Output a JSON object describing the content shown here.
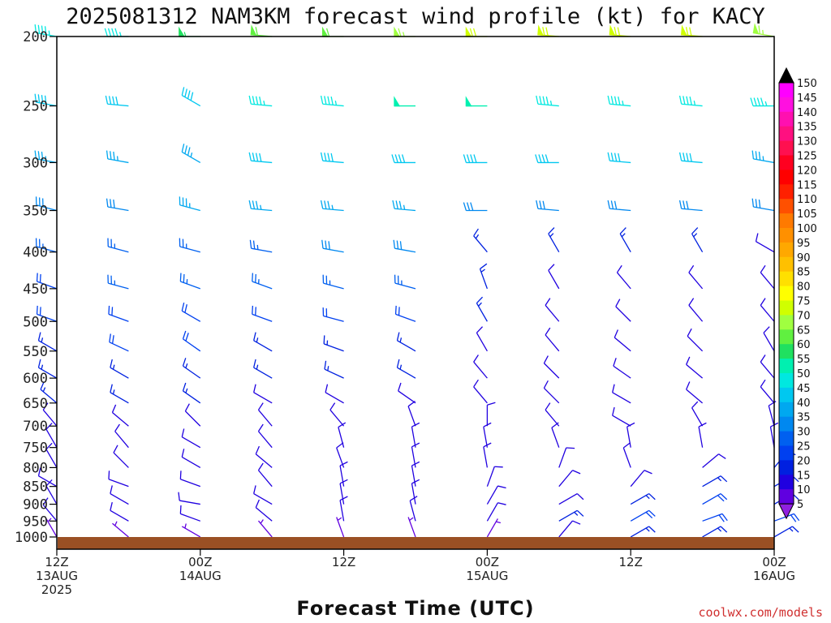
{
  "chart_data": {
    "type": "wind-barb-time-height",
    "title": "2025081312 NAM3KM forecast wind profile (kt) for KACY",
    "xlabel": "Forecast Time (UTC)",
    "credit": "coolwx.com/models",
    "y_axis": {
      "ticks": [
        200,
        250,
        300,
        350,
        400,
        450,
        500,
        550,
        600,
        650,
        700,
        750,
        800,
        850,
        900,
        950,
        1000
      ],
      "scale": "log-pressure",
      "range": [
        1040,
        200
      ]
    },
    "x_axis": {
      "range": [
        0,
        60
      ],
      "ticks": [
        {
          "hour": 0,
          "lines": [
            "12Z",
            "13AUG",
            "2025"
          ]
        },
        {
          "hour": 12,
          "lines": [
            "00Z",
            "14AUG"
          ]
        },
        {
          "hour": 24,
          "lines": [
            "12Z"
          ]
        },
        {
          "hour": 36,
          "lines": [
            "00Z",
            "15AUG"
          ]
        },
        {
          "hour": 48,
          "lines": [
            "12Z"
          ]
        },
        {
          "hour": 60,
          "lines": [
            "00Z",
            "16AUG"
          ]
        }
      ]
    },
    "colorbar": {
      "labels": [
        150,
        145,
        140,
        135,
        130,
        125,
        120,
        115,
        110,
        105,
        100,
        95,
        90,
        85,
        80,
        75,
        70,
        65,
        60,
        55,
        50,
        45,
        40,
        35,
        30,
        25,
        20,
        15,
        10,
        5
      ],
      "colors": [
        "#ff00ff",
        "#ff10e0",
        "#ff10b0",
        "#ff1080",
        "#ff1050",
        "#ff0020",
        "#ff0000",
        "#ff2000",
        "#ff5000",
        "#ff7a00",
        "#ff9000",
        "#ffa800",
        "#ffc000",
        "#ffe000",
        "#ffff00",
        "#d0ff00",
        "#a0ff40",
        "#60f040",
        "#20e060",
        "#00f0b0",
        "#00e8e0",
        "#00c8f0",
        "#00a8f0",
        "#0088f0",
        "#0060f0",
        "#0040f0",
        "#0020e0",
        "#2000e0",
        "#6000e0",
        "#9020e0"
      ]
    },
    "levels": [
      200,
      250,
      300,
      350,
      400,
      450,
      500,
      550,
      600,
      650,
      700,
      750,
      800,
      850,
      900,
      950,
      1000
    ],
    "times": [
      0,
      6,
      12,
      18,
      24,
      30,
      36,
      42,
      48,
      54,
      60
    ],
    "direction_deg": [
      [
        280,
        270,
        270,
        275,
        270,
        270,
        270,
        275,
        275,
        275,
        280
      ],
      [
        280,
        275,
        300,
        275,
        275,
        270,
        270,
        275,
        275,
        275,
        270
      ],
      [
        280,
        280,
        300,
        275,
        275,
        270,
        270,
        270,
        275,
        275,
        280
      ],
      [
        285,
        280,
        285,
        275,
        275,
        275,
        270,
        275,
        275,
        275,
        280
      ],
      [
        285,
        285,
        285,
        280,
        280,
        280,
        320,
        330,
        330,
        330,
        300
      ],
      [
        290,
        285,
        290,
        290,
        285,
        285,
        340,
        330,
        320,
        320,
        320
      ],
      [
        290,
        290,
        300,
        290,
        285,
        290,
        330,
        320,
        315,
        320,
        320
      ],
      [
        300,
        295,
        305,
        300,
        290,
        300,
        330,
        320,
        310,
        315,
        330
      ],
      [
        300,
        300,
        305,
        300,
        295,
        300,
        320,
        315,
        305,
        310,
        320
      ],
      [
        310,
        300,
        305,
        300,
        300,
        305,
        320,
        315,
        300,
        310,
        320
      ],
      [
        320,
        310,
        315,
        320,
        320,
        340,
        360,
        320,
        300,
        330,
        345
      ],
      [
        330,
        320,
        300,
        320,
        345,
        350,
        350,
        340,
        350,
        350,
        350
      ],
      [
        330,
        315,
        300,
        310,
        340,
        350,
        350,
        20,
        340,
        50,
        40
      ],
      [
        300,
        290,
        290,
        320,
        350,
        350,
        20,
        40,
        40,
        60,
        60
      ],
      [
        330,
        300,
        280,
        300,
        350,
        350,
        30,
        60,
        60,
        60,
        60
      ],
      [
        320,
        300,
        290,
        310,
        350,
        345,
        30,
        60,
        60,
        70,
        70
      ],
      [
        330,
        310,
        300,
        320,
        340,
        340,
        30,
        40,
        60,
        60,
        60
      ]
    ],
    "speed_kt": [
      [
        45,
        45,
        55,
        60,
        60,
        65,
        70,
        70,
        70,
        70,
        65
      ],
      [
        40,
        40,
        40,
        45,
        45,
        50,
        50,
        45,
        45,
        45,
        45
      ],
      [
        35,
        35,
        35,
        40,
        40,
        40,
        40,
        40,
        40,
        40,
        35
      ],
      [
        30,
        30,
        35,
        35,
        35,
        35,
        30,
        30,
        30,
        30,
        30
      ],
      [
        25,
        25,
        25,
        25,
        30,
        30,
        15,
        15,
        15,
        15,
        10
      ],
      [
        20,
        25,
        25,
        25,
        25,
        25,
        15,
        10,
        10,
        10,
        10
      ],
      [
        20,
        20,
        20,
        20,
        20,
        20,
        15,
        10,
        10,
        10,
        10
      ],
      [
        15,
        20,
        20,
        15,
        15,
        15,
        10,
        10,
        10,
        10,
        10
      ],
      [
        15,
        15,
        15,
        15,
        15,
        15,
        10,
        10,
        10,
        10,
        10
      ],
      [
        15,
        15,
        15,
        10,
        10,
        10,
        10,
        10,
        10,
        10,
        10
      ],
      [
        10,
        10,
        10,
        10,
        10,
        10,
        10,
        10,
        10,
        10,
        10
      ],
      [
        10,
        10,
        10,
        10,
        10,
        10,
        10,
        10,
        10,
        10,
        10
      ],
      [
        10,
        10,
        10,
        10,
        10,
        10,
        10,
        10,
        10,
        10,
        15
      ],
      [
        10,
        10,
        10,
        10,
        10,
        10,
        10,
        10,
        10,
        15,
        15
      ],
      [
        10,
        10,
        10,
        10,
        10,
        10,
        10,
        10,
        15,
        20,
        15
      ],
      [
        10,
        10,
        10,
        10,
        10,
        10,
        10,
        15,
        20,
        20,
        20
      ],
      [
        5,
        5,
        5,
        5,
        5,
        5,
        5,
        10,
        15,
        15,
        15
      ]
    ]
  }
}
